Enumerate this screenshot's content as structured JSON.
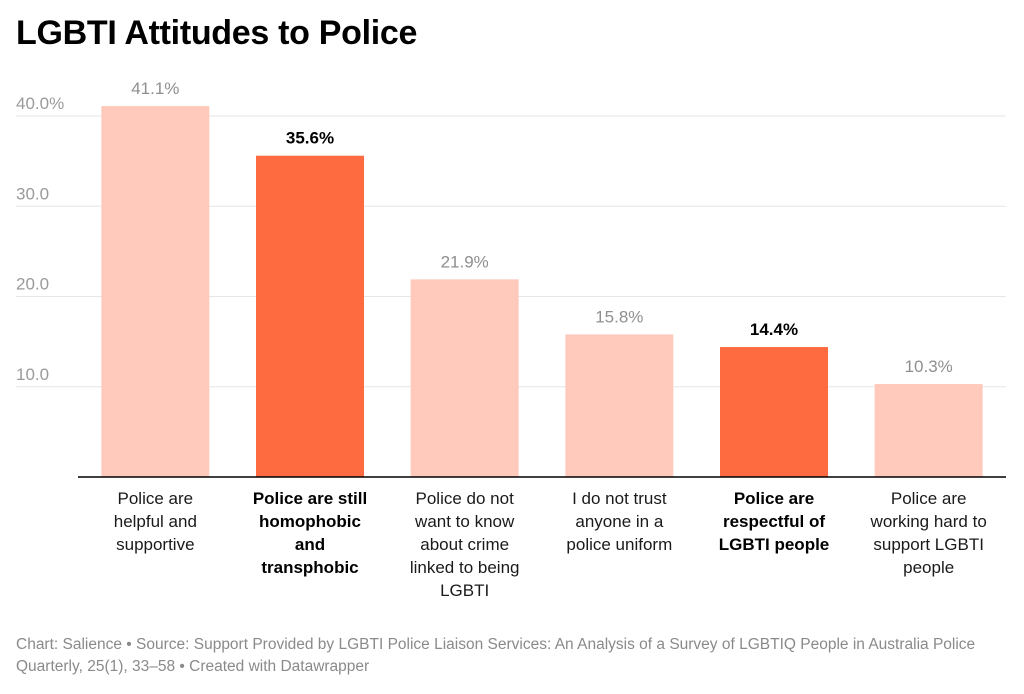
{
  "chart_data": {
    "type": "bar",
    "title": "LGBTI Attitudes to Police",
    "categories": [
      "Police are helpful and supportive",
      "Police are still homophobic and transphobic",
      "Police do not want to know about crime linked to being LGBTI",
      "I do not trust anyone in a police uniform",
      "Police are respectful of LGBTI people",
      "Police are working hard to support LGBTI people"
    ],
    "category_lines": [
      [
        "Police are",
        "helpful and",
        "supportive"
      ],
      [
        "Police are still",
        "homophobic",
        "and",
        "transphobic"
      ],
      [
        "Police do not",
        "want to know",
        "about crime",
        "linked to being",
        "LGBTI"
      ],
      [
        "I do not trust",
        "anyone in a",
        "police uniform"
      ],
      [
        "Police are",
        "respectful of",
        "LGBTI people"
      ],
      [
        "Police are",
        "working hard to",
        "support LGBTI",
        "people"
      ]
    ],
    "values": [
      41.1,
      35.6,
      21.9,
      15.8,
      14.4,
      10.3
    ],
    "value_labels": [
      "41.1%",
      "35.6%",
      "21.9%",
      "15.8%",
      "14.4%",
      "10.3%"
    ],
    "highlighted": [
      false,
      true,
      false,
      false,
      true,
      false
    ],
    "yticks": [
      10,
      20,
      30,
      40
    ],
    "ytick_labels": [
      "10.0",
      "20.0",
      "30.0",
      "40.0%"
    ],
    "ylim": [
      0,
      45
    ],
    "xlabel": "",
    "ylabel": "",
    "grid": true,
    "colors": {
      "base": "#ffcabb",
      "highlight": "#ff6b40",
      "grid": "#e6e6e6",
      "axis": "#000000"
    }
  },
  "footer": "Chart: Salience • Source: Support Provided by LGBTI Police Liaison Services: An Analysis of a Survey of LGBTIQ People in Australia Police Quarterly, 25(1), 33–58 • Created with Datawrapper"
}
